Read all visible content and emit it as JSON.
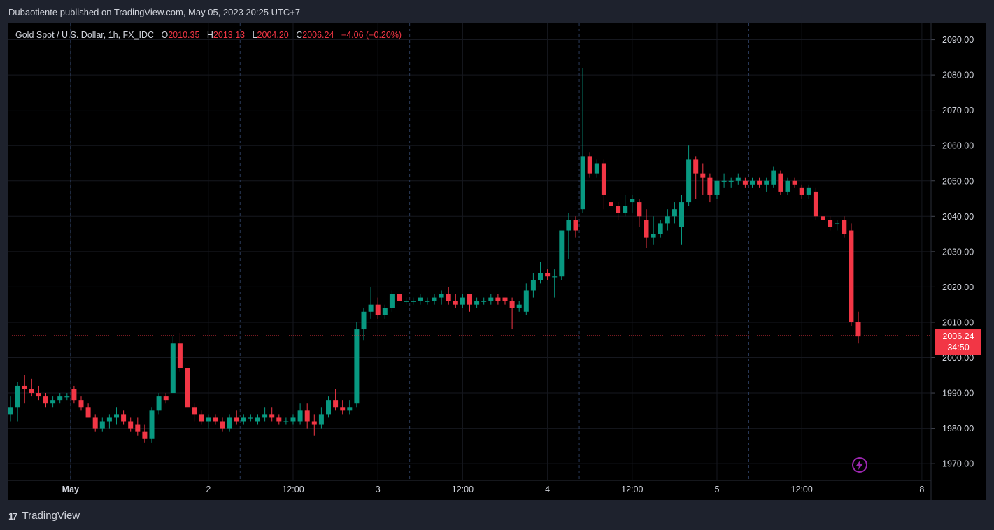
{
  "header": {
    "published_text": "Dubaotiente published on TradingView.com, May 05, 2023 20:25 UTC+7"
  },
  "legend": {
    "symbol": "Gold Spot / U.S. Dollar, 1h, FX_IDC",
    "o_label": "O",
    "o_value": "2010.35",
    "h_label": "H",
    "h_value": "2013.13",
    "l_label": "L",
    "l_value": "2004.20",
    "c_label": "C",
    "c_value": "2006.24",
    "change": "−4.06 (−0.20%)"
  },
  "price_badge": {
    "price": "2006.24",
    "countdown": "34:50"
  },
  "footer": {
    "brand": "TradingView",
    "logo_glyph": "17"
  },
  "colors": {
    "up": "#089981",
    "down": "#f23645",
    "background": "#000000",
    "frame": "#1e222d",
    "text": "#d1d4dc",
    "lightning": "#9c27b0"
  },
  "icons": {
    "lightning": "lightning-icon",
    "logo": "tradingview-logo-icon"
  },
  "chart_data": {
    "type": "candlestick",
    "symbol": "XAUUSD",
    "interval": "1h",
    "y_ticks": [
      "1970.00",
      "1980.00",
      "1990.00",
      "2000.00",
      "2010.00",
      "2020.00",
      "2030.00",
      "2040.00",
      "2050.00",
      "2060.00",
      "2070.00",
      "2080.00",
      "2090.00"
    ],
    "ylim": [
      1966,
      2095
    ],
    "x_ticks": [
      {
        "label": "May",
        "bar": 8.5,
        "bold": true
      },
      {
        "label": "2",
        "bar": 28
      },
      {
        "label": "12:00",
        "bar": 40
      },
      {
        "label": "3",
        "bar": 52
      },
      {
        "label": "12:00",
        "bar": 64
      },
      {
        "label": "4",
        "bar": 76
      },
      {
        "label": "12:00",
        "bar": 88
      },
      {
        "label": "5",
        "bar": 100
      },
      {
        "label": "12:00",
        "bar": 112
      },
      {
        "label": "8",
        "bar": 129
      }
    ],
    "last_price": 2006.24,
    "candles": [
      [
        1984,
        1989,
        1982,
        1986
      ],
      [
        1986,
        1993,
        1982,
        1992
      ],
      [
        1992,
        1995,
        1987,
        1991
      ],
      [
        1991,
        1994,
        1989,
        1990
      ],
      [
        1990,
        1992,
        1988,
        1989
      ],
      [
        1989,
        1990,
        1986,
        1987
      ],
      [
        1987,
        1989,
        1986,
        1988
      ],
      [
        1988,
        1990,
        1987,
        1989
      ],
      [
        1989,
        1990,
        1988,
        1989
      ],
      [
        1991,
        1992,
        1987,
        1988
      ],
      [
        1988,
        1989,
        1985,
        1986
      ],
      [
        1986,
        1987,
        1983,
        1983
      ],
      [
        1983,
        1984,
        1979,
        1980
      ],
      [
        1980,
        1983,
        1979,
        1982
      ],
      [
        1982,
        1984,
        1980,
        1983
      ],
      [
        1983,
        1986,
        1981,
        1984
      ],
      [
        1984,
        1985,
        1981,
        1982
      ],
      [
        1982,
        1983,
        1979,
        1980
      ],
      [
        1981,
        1983,
        1978,
        1979
      ],
      [
        1979,
        1981,
        1976,
        1977
      ],
      [
        1977,
        1986,
        1976,
        1985
      ],
      [
        1985,
        1990,
        1984,
        1989
      ],
      [
        1989,
        1990,
        1987,
        1988
      ],
      [
        1990,
        2006,
        1990,
        2004
      ],
      [
        2004,
        2007,
        1996,
        1997
      ],
      [
        1997,
        1998,
        1985,
        1986
      ],
      [
        1986,
        1987,
        1982,
        1984
      ],
      [
        1984,
        1985,
        1981,
        1982
      ],
      [
        1982,
        1984,
        1980,
        1983
      ],
      [
        1983,
        1984,
        1981,
        1982
      ],
      [
        1982,
        1983,
        1979,
        1980
      ],
      [
        1980,
        1984,
        1979,
        1983
      ],
      [
        1983,
        1985,
        1981,
        1982
      ],
      [
        1982,
        1984,
        1981,
        1983
      ],
      [
        1983,
        1984,
        1982,
        1983
      ],
      [
        1982,
        1984,
        1981,
        1983
      ],
      [
        1983,
        1986,
        1982,
        1984
      ],
      [
        1984,
        1986,
        1982,
        1983
      ],
      [
        1983,
        1984,
        1981,
        1982
      ],
      [
        1982,
        1983,
        1981,
        1982
      ],
      [
        1982,
        1984,
        1981,
        1983
      ],
      [
        1982,
        1987,
        1981,
        1985
      ],
      [
        1985,
        1987,
        1980,
        1982
      ],
      [
        1982,
        1984,
        1978,
        1981
      ],
      [
        1981,
        1986,
        1980,
        1984
      ],
      [
        1984,
        1989,
        1983,
        1988
      ],
      [
        1988,
        1991,
        1985,
        1986
      ],
      [
        1986,
        1988,
        1984,
        1985
      ],
      [
        1985,
        1988,
        1984,
        1986
      ],
      [
        1987,
        2010,
        1986,
        2008
      ],
      [
        2008,
        2014,
        2005,
        2013
      ],
      [
        2013,
        2020,
        2011,
        2015
      ],
      [
        2015,
        2017,
        2011,
        2012
      ],
      [
        2012,
        2015,
        2011,
        2014
      ],
      [
        2014,
        2019,
        2013,
        2018
      ],
      [
        2018,
        2019,
        2015,
        2016
      ],
      [
        2016,
        2017,
        2015,
        2016
      ],
      [
        2016,
        2017,
        2015,
        2016
      ],
      [
        2016,
        2018,
        2015,
        2017
      ],
      [
        2016,
        2017,
        2015,
        2016
      ],
      [
        2016,
        2018,
        2015,
        2017
      ],
      [
        2017,
        2019,
        2015,
        2018
      ],
      [
        2018,
        2020,
        2015,
        2016
      ],
      [
        2016,
        2018,
        2014,
        2015
      ],
      [
        2015,
        2018,
        2014,
        2017
      ],
      [
        2018,
        2018,
        2013,
        2015
      ],
      [
        2015,
        2017,
        2014,
        2016
      ],
      [
        2016,
        2017,
        2015,
        2016
      ],
      [
        2016,
        2018,
        2015,
        2017
      ],
      [
        2017,
        2018,
        2015,
        2016
      ],
      [
        2017,
        2017,
        2015,
        2016
      ],
      [
        2016,
        2017,
        2008,
        2014
      ],
      [
        2014,
        2016,
        2013,
        2015
      ],
      [
        2013,
        2021,
        2012,
        2019
      ],
      [
        2019,
        2024,
        2017,
        2022
      ],
      [
        2022,
        2027,
        2021,
        2024
      ],
      [
        2024,
        2025,
        2022,
        2023
      ],
      [
        2023,
        2025,
        2017,
        2023
      ],
      [
        2023,
        2036,
        2022,
        2036
      ],
      [
        2036,
        2041,
        2028,
        2039
      ],
      [
        2039,
        2040,
        2034,
        2036
      ],
      [
        2042,
        2082,
        2041,
        2057
      ],
      [
        2057,
        2058,
        2051,
        2052
      ],
      [
        2052,
        2056,
        2051,
        2055
      ],
      [
        2055,
        2056,
        2042,
        2046
      ],
      [
        2044,
        2046,
        2038,
        2043
      ],
      [
        2043,
        2044,
        2039,
        2041
      ],
      [
        2041,
        2046,
        2040,
        2043
      ],
      [
        2044,
        2046,
        2041,
        2045
      ],
      [
        2044,
        2045,
        2037,
        2040
      ],
      [
        2039,
        2042,
        2031,
        2034
      ],
      [
        2034,
        2040,
        2032,
        2035
      ],
      [
        2035,
        2039,
        2034,
        2038
      ],
      [
        2038,
        2042,
        2036,
        2040
      ],
      [
        2040,
        2044,
        2038,
        2042
      ],
      [
        2037,
        2046,
        2032,
        2044
      ],
      [
        2044,
        2060,
        2043,
        2056
      ],
      [
        2056,
        2057,
        2045,
        2052
      ],
      [
        2052,
        2055,
        2046,
        2051
      ],
      [
        2051,
        2052,
        2044,
        2046
      ],
      [
        2046,
        2050,
        2045,
        2050
      ],
      [
        2050,
        2052,
        2048,
        2050
      ],
      [
        2050,
        2051,
        2048,
        2050
      ],
      [
        2050,
        2052,
        2049,
        2051
      ],
      [
        2050,
        2051,
        2048,
        2049
      ],
      [
        2049,
        2051,
        2048,
        2050
      ],
      [
        2050,
        2051,
        2048,
        2049
      ],
      [
        2049,
        2051,
        2047,
        2050
      ],
      [
        2049,
        2054,
        2048,
        2053
      ],
      [
        2052,
        2053,
        2046,
        2047
      ],
      [
        2047,
        2051,
        2046,
        2050
      ],
      [
        2050,
        2051,
        2048,
        2049
      ],
      [
        2048,
        2049,
        2045,
        2046
      ],
      [
        2046,
        2049,
        2045,
        2048
      ],
      [
        2047,
        2048,
        2039,
        2040
      ],
      [
        2040,
        2041,
        2038,
        2039
      ],
      [
        2039,
        2040,
        2036,
        2037
      ],
      [
        2038,
        2039,
        2036,
        2038
      ],
      [
        2039,
        2040,
        2034,
        2035
      ],
      [
        2036,
        2038,
        2009,
        2010
      ],
      [
        2010,
        2013,
        2004,
        2006
      ]
    ]
  }
}
